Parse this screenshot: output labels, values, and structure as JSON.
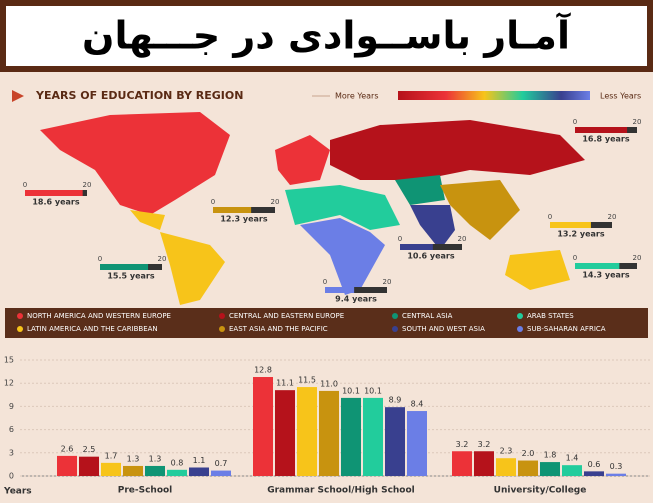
{
  "title": "آمـار باســوادی در جـــهان",
  "chart_data": [
    {
      "type": "map-callouts",
      "title": "YEARS OF EDUCATION BY REGION",
      "scale_labels": [
        "More Years",
        "Less Years"
      ],
      "values": [
        18.6,
        16.8,
        13.2,
        12.3,
        15.5,
        14.3,
        10.6,
        9.4
      ],
      "value_labels": [
        "18.6 years",
        "16.8 years",
        "13.2 years",
        "12.3 years",
        "15.5 years",
        "14.3 years",
        "10.6 years",
        "9.4 years"
      ],
      "xlim": [
        0,
        20
      ],
      "xticks": [
        0,
        20
      ]
    },
    {
      "type": "bar",
      "y_label": "Years",
      "categories": [
        "Pre-School",
        "Grammar School/High School",
        "University/College"
      ],
      "series": [
        {
          "name": "NORTH AMERICA AND WESTERN EUROPE",
          "color": "#ec3238",
          "values": [
            2.6,
            12.8,
            3.2
          ],
          "value_labels": [
            "2.6",
            "12.8",
            "3.2"
          ]
        },
        {
          "name": "CENTRAL AND EASTERN EUROPE",
          "color": "#b5121b",
          "values": [
            2.5,
            11.1,
            3.2
          ],
          "value_labels": [
            "2.5",
            "11.1",
            "3.2"
          ]
        },
        {
          "name": "LATIN AMERICA AND THE CARIBBEAN",
          "color": "#f7c41a",
          "values": [
            1.7,
            11.5,
            2.3
          ],
          "value_labels": [
            "1.7",
            "11.5",
            "2.3"
          ]
        },
        {
          "name": "EAST ASIA AND THE PACIFIC",
          "color": "#c8930f",
          "values": [
            1.3,
            11.0,
            2.0
          ],
          "value_labels": [
            "1.3",
            "11.0",
            "2.0"
          ]
        },
        {
          "name": "CENTRAL ASIA",
          "color": "#0f9474",
          "values": [
            1.3,
            10.1,
            1.8
          ],
          "value_labels": [
            "1.3",
            "10.1",
            "1.8"
          ]
        },
        {
          "name": "ARAB STATES",
          "color": "#22cc9c",
          "values": [
            0.8,
            10.1,
            1.4
          ],
          "value_labels": [
            "0.8",
            "10.1",
            "1.4"
          ]
        },
        {
          "name": "SOUTH AND WEST ASIA",
          "color": "#39408f",
          "values": [
            1.1,
            8.9,
            0.6
          ],
          "value_labels": [
            "1.1",
            "8.9",
            "0.6"
          ]
        },
        {
          "name": "SUB-SAHARAN AFRICA",
          "color": "#6b7ee6",
          "values": [
            0.7,
            8.4,
            0.3
          ],
          "value_labels": [
            "0.7",
            "8.4",
            "0.3"
          ]
        }
      ],
      "ylim": [
        0,
        15
      ],
      "yticks": [
        0,
        3,
        6,
        9,
        12,
        15
      ],
      "grid": true
    }
  ]
}
